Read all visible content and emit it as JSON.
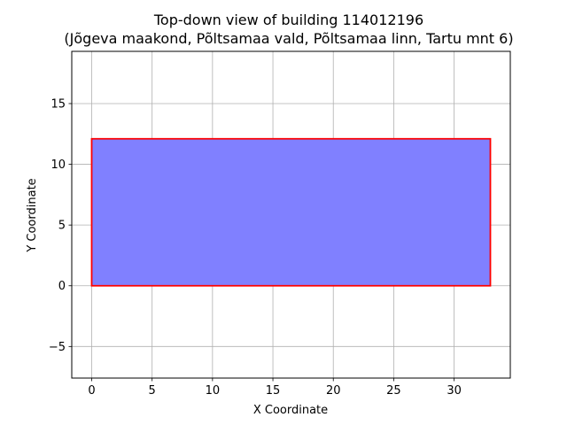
{
  "chart_data": {
    "type": "area",
    "title": "Top-down view of building 114012196",
    "subtitle": "(Jõgeva maakond, Põltsamaa vald, Põltsamaa linn, Tartu mnt 6)",
    "xlabel": "X Coordinate",
    "ylabel": "Y Coordinate",
    "xlim": [
      -1.65,
      34.65
    ],
    "ylim": [
      -7.6,
      19.3
    ],
    "xticks": [
      0,
      5,
      10,
      15,
      20,
      25,
      30
    ],
    "yticks": [
      -5,
      0,
      5,
      10,
      15
    ],
    "xtick_labels": [
      "0",
      "5",
      "10",
      "15",
      "20",
      "25",
      "30"
    ],
    "ytick_labels": [
      "−5",
      "0",
      "5",
      "10",
      "15"
    ],
    "grid": true,
    "polygon": {
      "x": [
        0,
        33,
        33,
        0,
        0
      ],
      "y": [
        0,
        0,
        12.1,
        12.1,
        0
      ],
      "fill_color": "#8080ff",
      "edge_color": "#ff0000"
    }
  }
}
